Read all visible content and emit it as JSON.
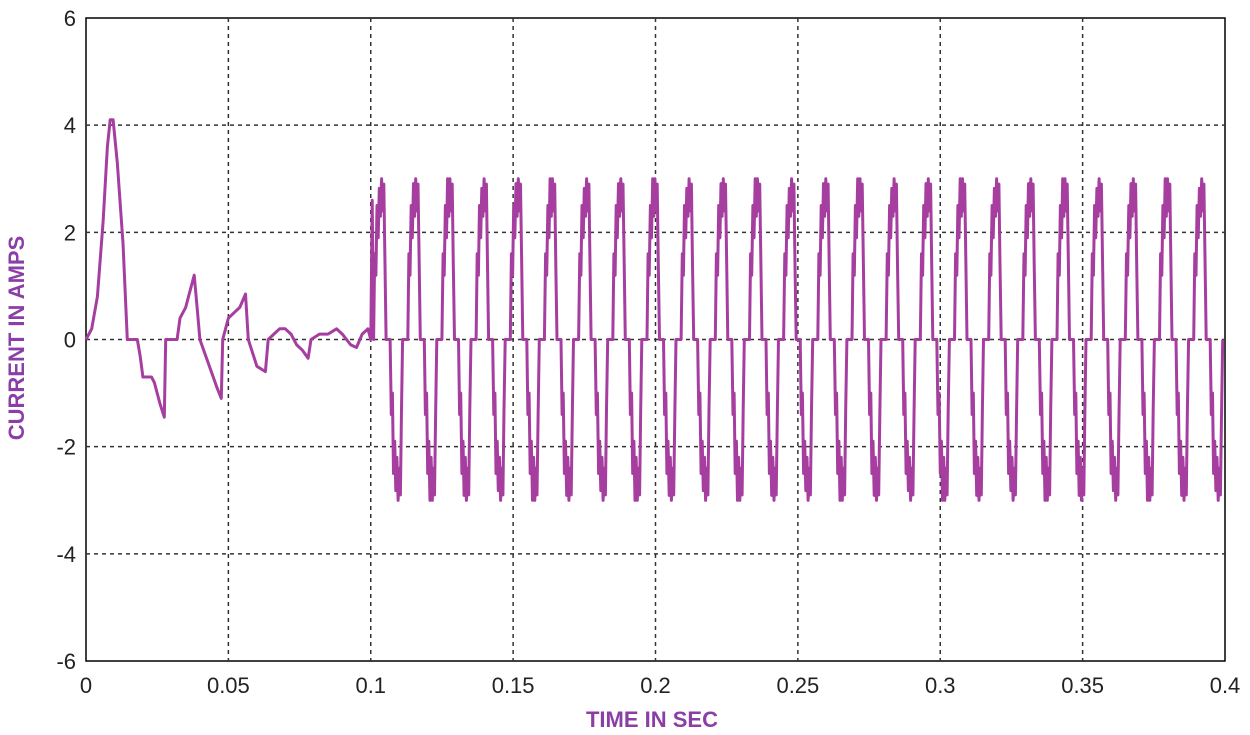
{
  "chart_data": {
    "type": "line",
    "title": "",
    "xlabel": "TIME IN SEC",
    "ylabel": "CURRENT IN AMPS",
    "xlim": [
      0,
      0.4
    ],
    "ylim": [
      -6,
      6
    ],
    "x_ticks": [
      "0",
      "0.05",
      "0.1",
      "0.15",
      "0.2",
      "0.25",
      "0.3",
      "0.35",
      "0.4"
    ],
    "y_ticks": [
      "6",
      "4",
      "2",
      "0",
      "-2",
      "-4",
      "-6"
    ],
    "grid": true,
    "line_color": "#a63ea0",
    "label_color": "#8b3fa6",
    "series": [
      {
        "name": "",
        "transient_points": [
          [
            0.0,
            0.0
          ],
          [
            0.002,
            0.2
          ],
          [
            0.004,
            0.8
          ],
          [
            0.006,
            2.2
          ],
          [
            0.0075,
            3.6
          ],
          [
            0.0085,
            4.1
          ],
          [
            0.0095,
            4.1
          ],
          [
            0.011,
            3.3
          ],
          [
            0.013,
            1.8
          ],
          [
            0.0145,
            0.0
          ],
          [
            0.018,
            0.0
          ],
          [
            0.019,
            -0.3
          ],
          [
            0.02,
            -0.7
          ],
          [
            0.023,
            -0.7
          ],
          [
            0.024,
            -0.8
          ],
          [
            0.026,
            -1.2
          ],
          [
            0.0275,
            -1.45
          ],
          [
            0.028,
            0.0
          ],
          [
            0.032,
            0.0
          ],
          [
            0.033,
            0.4
          ],
          [
            0.035,
            0.6
          ],
          [
            0.036,
            0.8
          ],
          [
            0.038,
            1.2
          ],
          [
            0.039,
            0.6
          ],
          [
            0.04,
            0.0
          ],
          [
            0.042,
            -0.3
          ],
          [
            0.044,
            -0.6
          ],
          [
            0.046,
            -0.9
          ],
          [
            0.0475,
            -1.1
          ],
          [
            0.048,
            0.0
          ],
          [
            0.05,
            0.4
          ],
          [
            0.052,
            0.5
          ],
          [
            0.054,
            0.6
          ],
          [
            0.056,
            0.85
          ],
          [
            0.057,
            0.0
          ],
          [
            0.06,
            -0.5
          ],
          [
            0.063,
            -0.6
          ],
          [
            0.064,
            0.0
          ],
          [
            0.066,
            0.1
          ],
          [
            0.068,
            0.2
          ],
          [
            0.07,
            0.2
          ],
          [
            0.072,
            0.1
          ],
          [
            0.074,
            -0.1
          ],
          [
            0.076,
            -0.2
          ],
          [
            0.078,
            -0.35
          ],
          [
            0.079,
            0.0
          ],
          [
            0.082,
            0.1
          ],
          [
            0.085,
            0.1
          ],
          [
            0.088,
            0.2
          ],
          [
            0.09,
            0.1
          ],
          [
            0.093,
            -0.1
          ],
          [
            0.095,
            -0.15
          ],
          [
            0.097,
            0.1
          ],
          [
            0.099,
            0.2
          ],
          [
            0.1,
            0.0
          ],
          [
            0.1005,
            2.6
          ],
          [
            0.101,
            0.0
          ]
        ],
        "steady_state": {
          "start_s": 0.101,
          "end_s": 0.4,
          "period_s": 0.012,
          "positive_peak_a": 3.0,
          "negative_peak_a": -3.0,
          "shape": "quasi-square current with high-frequency ripple"
        }
      }
    ]
  }
}
